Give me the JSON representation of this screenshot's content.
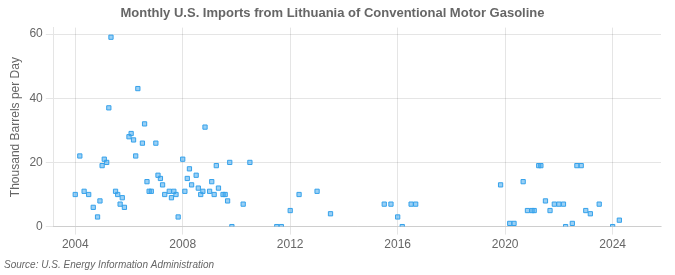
{
  "chart_data": {
    "type": "scatter",
    "title": "Monthly U.S. Imports from Lithuania of Conventional Motor Gasoline",
    "ylabel": "Thousand Barrels per Day",
    "annotation": "Source: U.S. Energy Information Administration",
    "marker": "square",
    "grid": true,
    "xlim": [
      2003.2,
      2025.8
    ],
    "xticks": [
      2004,
      2008,
      2012,
      2016,
      2020,
      2024
    ],
    "ylim": [
      0,
      62
    ],
    "yticks": [
      0,
      20,
      40,
      60
    ],
    "x": [
      2004.0,
      2004.17,
      2004.33,
      2004.5,
      2004.67,
      2004.83,
      2004.92,
      2005.0,
      2005.08,
      2005.17,
      2005.25,
      2005.33,
      2005.5,
      2005.58,
      2005.67,
      2005.75,
      2005.83,
      2006.0,
      2006.08,
      2006.17,
      2006.25,
      2006.33,
      2006.5,
      2006.58,
      2006.67,
      2006.75,
      2006.83,
      2007.0,
      2007.08,
      2007.17,
      2007.25,
      2007.33,
      2007.5,
      2007.58,
      2007.67,
      2007.75,
      2007.83,
      2008.0,
      2008.08,
      2008.17,
      2008.25,
      2008.33,
      2008.5,
      2008.58,
      2008.67,
      2008.75,
      2008.83,
      2009.0,
      2009.08,
      2009.17,
      2009.25,
      2009.33,
      2009.5,
      2009.58,
      2009.67,
      2009.75,
      2009.83,
      2010.25,
      2010.5,
      2011.5,
      2011.67,
      2012.0,
      2012.33,
      2013.0,
      2013.5,
      2015.5,
      2015.75,
      2016.0,
      2016.17,
      2016.5,
      2016.67,
      2019.83,
      2020.17,
      2020.33,
      2020.67,
      2020.83,
      2021.0,
      2021.08,
      2021.25,
      2021.33,
      2021.5,
      2021.67,
      2021.83,
      2022.0,
      2022.17,
      2022.25,
      2022.5,
      2022.67,
      2022.83,
      2023.0,
      2023.17,
      2023.5,
      2024.0,
      2024.25
    ],
    "values": [
      10,
      22,
      11,
      10,
      6,
      3,
      8,
      19,
      21,
      20,
      37,
      59,
      11,
      10,
      7,
      9,
      6,
      28,
      29,
      27,
      22,
      43,
      26,
      32,
      14,
      11,
      11,
      26,
      16,
      15,
      13,
      10,
      11,
      9,
      11,
      10,
      3,
      21,
      11,
      15,
      18,
      13,
      16,
      12,
      10,
      11,
      31,
      11,
      14,
      10,
      19,
      12,
      10,
      10,
      8,
      20,
      0,
      7,
      20,
      0,
      0,
      5,
      10,
      11,
      4,
      7,
      7,
      3,
      0,
      7,
      7,
      13,
      1,
      1,
      14,
      5,
      5,
      5,
      19,
      19,
      8,
      5,
      7,
      7,
      7,
      0,
      1,
      19,
      19,
      5,
      4,
      7,
      0,
      2
    ]
  }
}
